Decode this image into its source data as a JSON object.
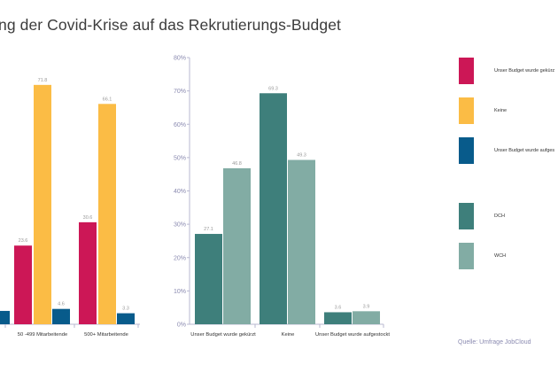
{
  "title": "ng der Covid-Krise auf das Rekrutierungs-Budget",
  "source": "Quelle: Umfrage JobCloud",
  "colors": {
    "cut": "#cc1756",
    "none": "#fbbc45",
    "raised": "#085b8b",
    "dch": "#3e7f7b",
    "wch": "#82aca4",
    "axis": "#b8b8d0",
    "tick_text": "#8a8ab0",
    "value_text": "#999999"
  },
  "legend": [
    {
      "label": "Unser Budget wurde gekürz",
      "color_key": "cut"
    },
    {
      "label": "Keine",
      "color_key": "none"
    },
    {
      "label": "Unser Budget wurde aufges",
      "color_key": "raised"
    },
    {
      "label": "DCH",
      "color_key": "dch"
    },
    {
      "label": "WCH",
      "color_key": "wch"
    }
  ],
  "chart_data": [
    {
      "type": "bar",
      "title": "",
      "categories": [
        "",
        "50 -499 Mitarbeitende",
        "500+ Mitarbeitende"
      ],
      "series": [
        {
          "name": "Unser Budget wurde gekürzt",
          "color_key": "cut",
          "values": [
            null,
            23.6,
            30.6
          ],
          "labels": [
            "",
            "23.6",
            "30.6"
          ]
        },
        {
          "name": "Keine",
          "color_key": "none",
          "values": [
            null,
            71.8,
            66.1
          ],
          "labels": [
            "",
            "71.8",
            "66.1"
          ]
        },
        {
          "name": "Unser Budget wurde aufgestockt",
          "color_key": "raised",
          "values": [
            4.0,
            4.6,
            3.3
          ],
          "labels": [
            "",
            "4.6",
            "3.3"
          ]
        }
      ],
      "ylim": [
        0,
        80
      ],
      "xlabel": "",
      "ylabel": ""
    },
    {
      "type": "bar",
      "title": "",
      "categories": [
        "Unser Budget wurde gekürzt",
        "Keine",
        "Unser Budget wurde aufgestockt"
      ],
      "series": [
        {
          "name": "DCH",
          "color_key": "dch",
          "values": [
            27.1,
            69.3,
            3.6
          ],
          "labels": [
            "27.1",
            "69.3",
            "3.6"
          ]
        },
        {
          "name": "WCH",
          "color_key": "wch",
          "values": [
            46.8,
            49.3,
            3.9
          ],
          "labels": [
            "46.8",
            "49.3",
            "3.9"
          ]
        }
      ],
      "ylim": [
        0,
        80
      ],
      "yticks": [
        0,
        10,
        20,
        30,
        40,
        50,
        60,
        70,
        80
      ],
      "ytick_labels": [
        "0%",
        "10%",
        "20%",
        "30%",
        "40%",
        "50%",
        "60%",
        "70%",
        "80%"
      ],
      "xlabel": "",
      "ylabel": ""
    }
  ]
}
